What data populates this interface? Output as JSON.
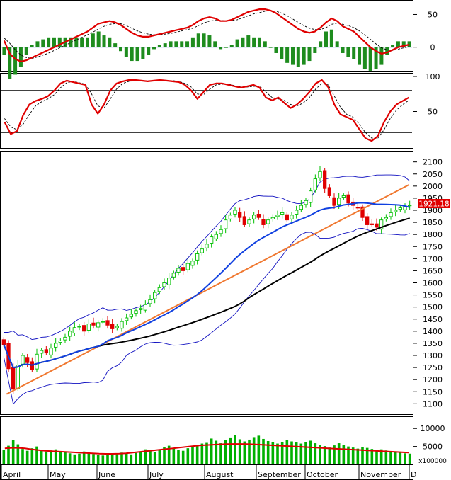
{
  "chart_data": [
    {
      "type": "line",
      "panel": "macd",
      "yticks": [
        50,
        0
      ],
      "ylim": [
        -35,
        70
      ],
      "bars_color": "#1e8c1e",
      "line_color": "#e00000",
      "signal_color": "#000000",
      "line": [
        10,
        -10,
        -18,
        -22,
        -20,
        -16,
        -12,
        -8,
        -4,
        0,
        4,
        8,
        12,
        16,
        20,
        24,
        30,
        36,
        38,
        40,
        38,
        34,
        28,
        22,
        18,
        16,
        16,
        18,
        20,
        22,
        24,
        26,
        28,
        30,
        34,
        40,
        44,
        46,
        44,
        40,
        40,
        42,
        46,
        50,
        54,
        56,
        58,
        58,
        56,
        52,
        46,
        40,
        34,
        28,
        24,
        22,
        24,
        30,
        38,
        44,
        40,
        32,
        28,
        24,
        16,
        8,
        0,
        -6,
        -10,
        -8,
        -4,
        0,
        2,
        4
      ],
      "signal": [
        14,
        6,
        -4,
        -12,
        -16,
        -17,
        -15,
        -12,
        -9,
        -5,
        -1,
        3,
        7,
        11,
        15,
        19,
        23,
        28,
        32,
        35,
        36,
        36,
        33,
        29,
        25,
        22,
        20,
        19,
        19,
        20,
        21,
        23,
        25,
        27,
        29,
        33,
        37,
        40,
        41,
        41,
        40,
        41,
        42,
        45,
        48,
        51,
        53,
        55,
        56,
        55,
        52,
        48,
        43,
        38,
        33,
        29,
        27,
        27,
        30,
        35,
        37,
        35,
        33,
        30,
        25,
        19,
        12,
        5,
        -1,
        -4,
        -5,
        -3,
        -1,
        1
      ]
    },
    {
      "type": "line",
      "panel": "stochastic",
      "yticks": [
        100,
        50
      ],
      "ylim": [
        0,
        100
      ],
      "ref_lines": [
        80,
        20
      ],
      "k": [
        35,
        18,
        22,
        45,
        60,
        65,
        68,
        72,
        80,
        90,
        94,
        92,
        90,
        88,
        60,
        47,
        60,
        80,
        90,
        93,
        95,
        95,
        94,
        93,
        94,
        95,
        94,
        93,
        92,
        88,
        80,
        68,
        78,
        88,
        90,
        90,
        88,
        86,
        84,
        86,
        88,
        84,
        70,
        66,
        70,
        62,
        55,
        60,
        68,
        78,
        90,
        95,
        85,
        60,
        46,
        42,
        38,
        25,
        12,
        8,
        15,
        35,
        50,
        60,
        65,
        70
      ],
      "d": [
        40,
        28,
        24,
        32,
        46,
        58,
        64,
        68,
        74,
        84,
        91,
        93,
        91,
        89,
        75,
        58,
        55,
        68,
        82,
        90,
        93,
        94,
        94,
        94,
        94,
        94,
        94,
        94,
        93,
        90,
        85,
        75,
        74,
        82,
        88,
        89,
        89,
        87,
        85,
        85,
        86,
        86,
        78,
        70,
        68,
        66,
        60,
        58,
        62,
        70,
        82,
        90,
        88,
        72,
        56,
        46,
        42,
        32,
        20,
        12,
        12,
        24,
        40,
        52,
        60,
        66
      ]
    },
    {
      "type": "candlestick",
      "panel": "price",
      "yticks": [
        2100,
        2050,
        2000,
        1950,
        1900,
        1850,
        1800,
        1750,
        1700,
        1650,
        1600,
        1550,
        1500,
        1450,
        1400,
        1350,
        1300,
        1250,
        1200,
        1150,
        1100
      ],
      "ylim": [
        1060,
        2140
      ],
      "last_price": "1921.18",
      "up_color": "#00c000",
      "down_color": "#e00000",
      "ma_fast_color": "#1040e0",
      "ma_slow_color": "#000000",
      "band_color": "#1010c0",
      "trend_color": "#f07830",
      "trendline": [
        [
          1,
          1140
        ],
        [
          143,
          2005
        ]
      ],
      "close": [
        1345,
        1245,
        1160,
        1260,
        1300,
        1270,
        1240,
        1305,
        1320,
        1310,
        1330,
        1350,
        1360,
        1375,
        1400,
        1415,
        1420,
        1400,
        1430,
        1425,
        1435,
        1440,
        1425,
        1410,
        1420,
        1440,
        1455,
        1470,
        1485,
        1495,
        1510,
        1530,
        1560,
        1580,
        1600,
        1620,
        1640,
        1660,
        1650,
        1680,
        1690,
        1720,
        1740,
        1760,
        1790,
        1800,
        1820,
        1860,
        1880,
        1900,
        1870,
        1840,
        1860,
        1880,
        1870,
        1840,
        1860,
        1870,
        1880,
        1890,
        1860,
        1880,
        1900,
        1920,
        1940,
        1980,
        2030,
        2060,
        1990,
        1960,
        1920,
        1950,
        1960,
        1930,
        1920,
        1910,
        1870,
        1840,
        1840,
        1830,
        1860,
        1870,
        1890,
        1900,
        1910,
        1915,
        1921.18
      ]
    },
    {
      "type": "bar",
      "panel": "volume",
      "yticks": [
        10000,
        5000
      ],
      "unit": "x100000",
      "ylim": [
        0,
        13000
      ],
      "bar_color": "#00b000",
      "ma_color": "#e00000",
      "values": [
        4000,
        5200,
        6800,
        5600,
        4300,
        3800,
        4500,
        5000,
        4100,
        3600,
        3900,
        4200,
        3700,
        3400,
        3100,
        2800,
        3000,
        3600,
        3300,
        2900,
        2700,
        2500,
        2600,
        2800,
        3100,
        3300,
        3000,
        2800,
        3200,
        3600,
        4200,
        3900,
        3500,
        4100,
        4800,
        5200,
        4400,
        4000,
        3800,
        4500,
        4900,
        5300,
        5800,
        6000,
        7200,
        6600,
        5900,
        6800,
        7500,
        8200,
        7000,
        6400,
        6900,
        7600,
        8000,
        7100,
        6500,
        6200,
        5800,
        6300,
        6800,
        6400,
        6100,
        5800,
        6200,
        6600,
        5900,
        5400,
        5100,
        4700,
        5300,
        5900,
        5400,
        5000,
        4700,
        4400,
        4900,
        4600,
        4300,
        4000,
        4200,
        3900,
        3700,
        3500,
        3300,
        3100,
        3000
      ],
      "ma": [
        4500,
        4600,
        4600,
        4500,
        4200,
        4000,
        3800,
        3700,
        3600,
        3500,
        3400,
        3300,
        3200,
        3100,
        3000,
        2950,
        2950,
        3000,
        3100,
        3300,
        3500,
        3700,
        3900,
        4100,
        4300,
        4500,
        4700,
        4900,
        5100,
        5300,
        5400,
        5500,
        5600,
        5650,
        5700,
        5700,
        5650,
        5600,
        5500,
        5400,
        5300,
        5200,
        5100,
        5000,
        4900,
        4800,
        4700,
        4600,
        4500,
        4400,
        4300,
        4200,
        4100,
        4000,
        3900,
        3800,
        3700,
        3600,
        3500,
        3400,
        3300
      ]
    },
    {
      "type": "axis",
      "months": [
        "April",
        "May",
        "June",
        "July",
        "August",
        "September",
        "October",
        "November",
        "D"
      ]
    }
  ]
}
